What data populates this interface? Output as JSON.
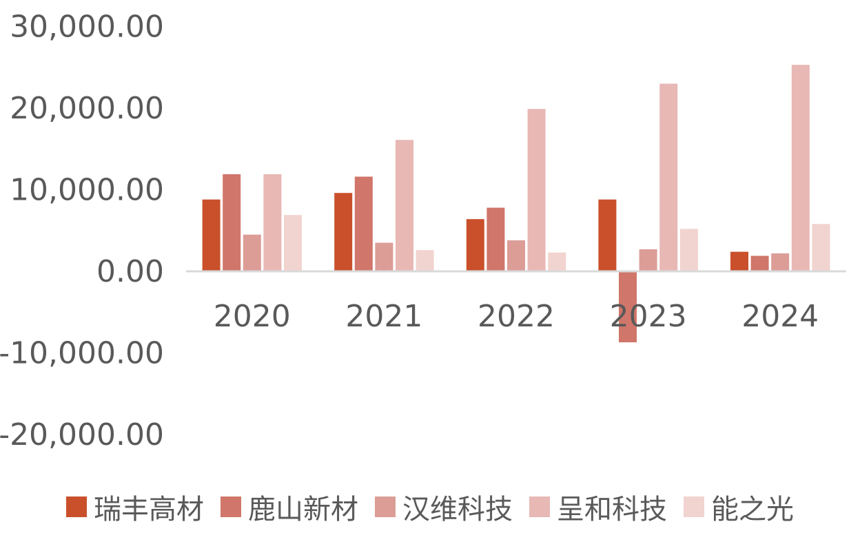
{
  "chart_data": {
    "type": "bar",
    "title": "",
    "xlabel": "",
    "ylabel": "",
    "categories": [
      "2020",
      "2021",
      "2022",
      "2023",
      "2024"
    ],
    "ylim": [
      -20000,
      30000
    ],
    "yticks": [
      30000,
      20000,
      10000,
      0,
      -10000,
      -20000
    ],
    "ytick_labels": [
      "30,000.00",
      "20,000.00",
      "10,000.00",
      "0.00",
      "-10,000.00",
      "-20,000.00"
    ],
    "grid": false,
    "legend_position": "bottom",
    "series": [
      {
        "name": "瑞丰高材",
        "color": "#c9502b",
        "values": [
          8800,
          9600,
          6400,
          8800,
          2400
        ]
      },
      {
        "name": "鹿山新材",
        "color": "#d0766a",
        "values": [
          11900,
          11600,
          7800,
          -8700,
          1900
        ]
      },
      {
        "name": "汉维科技",
        "color": "#dc9d97",
        "values": [
          4500,
          3500,
          3800,
          2700,
          2200
        ]
      },
      {
        "name": "呈和科技",
        "color": "#e8b8b4",
        "values": [
          11900,
          16100,
          19900,
          23000,
          25300
        ]
      },
      {
        "name": "能之光",
        "color": "#f1d3cf",
        "values": [
          6900,
          2600,
          2300,
          5200,
          5800
        ]
      }
    ]
  }
}
